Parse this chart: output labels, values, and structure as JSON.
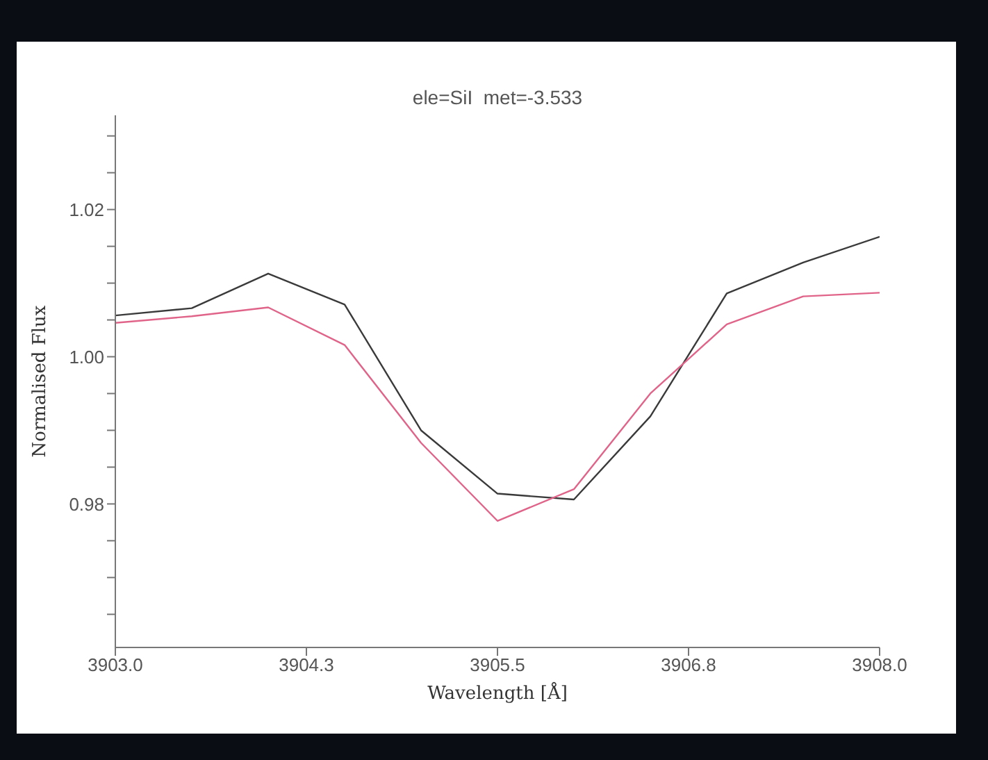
{
  "chart_data": {
    "type": "line",
    "title": "ele=SiI  met=-3.533",
    "xlabel": "Wavelength [Å]",
    "ylabel": "Normalised Flux",
    "x": [
      3903.0,
      3903.5,
      3904.0,
      3904.5,
      3905.0,
      3905.5,
      3906.0,
      3906.5,
      3907.0,
      3907.5,
      3908.0
    ],
    "series": [
      {
        "color": "#3a3a3a",
        "values": [
          1.0056,
          1.0066,
          1.0113,
          1.0071,
          0.99,
          0.9814,
          0.9806,
          0.9919,
          1.0086,
          1.0128,
          1.0163
        ]
      },
      {
        "color": "#e0648a",
        "values": [
          1.0046,
          1.0055,
          1.0067,
          1.0016,
          0.9883,
          0.9777,
          0.982,
          0.995,
          1.0044,
          1.0082,
          1.0087
        ]
      }
    ],
    "xlim": [
      3903.0,
      3908.0
    ],
    "xticks": [
      {
        "value": 3903.0,
        "label": "3903.0"
      },
      {
        "value": 3904.25,
        "label": "3904.3"
      },
      {
        "value": 3905.5,
        "label": "3905.5"
      },
      {
        "value": 3906.75,
        "label": "3906.8"
      },
      {
        "value": 3908.0,
        "label": "3908.0"
      }
    ],
    "ylim": [
      0.9605,
      1.0328
    ],
    "yticks": [
      {
        "value": 0.965,
        "label": null
      },
      {
        "value": 0.97,
        "label": null
      },
      {
        "value": 0.975,
        "label": null
      },
      {
        "value": 0.98,
        "label": "0.98"
      },
      {
        "value": 0.985,
        "label": null
      },
      {
        "value": 0.99,
        "label": null
      },
      {
        "value": 0.995,
        "label": null
      },
      {
        "value": 1.0,
        "label": "1.00"
      },
      {
        "value": 1.005,
        "label": null
      },
      {
        "value": 1.01,
        "label": null
      },
      {
        "value": 1.015,
        "label": null
      },
      {
        "value": 1.02,
        "label": "1.02"
      },
      {
        "value": 1.025,
        "label": null
      },
      {
        "value": 1.03,
        "label": null
      }
    ],
    "grid": false,
    "legend": false,
    "marker": "none",
    "line_style": "solid"
  }
}
